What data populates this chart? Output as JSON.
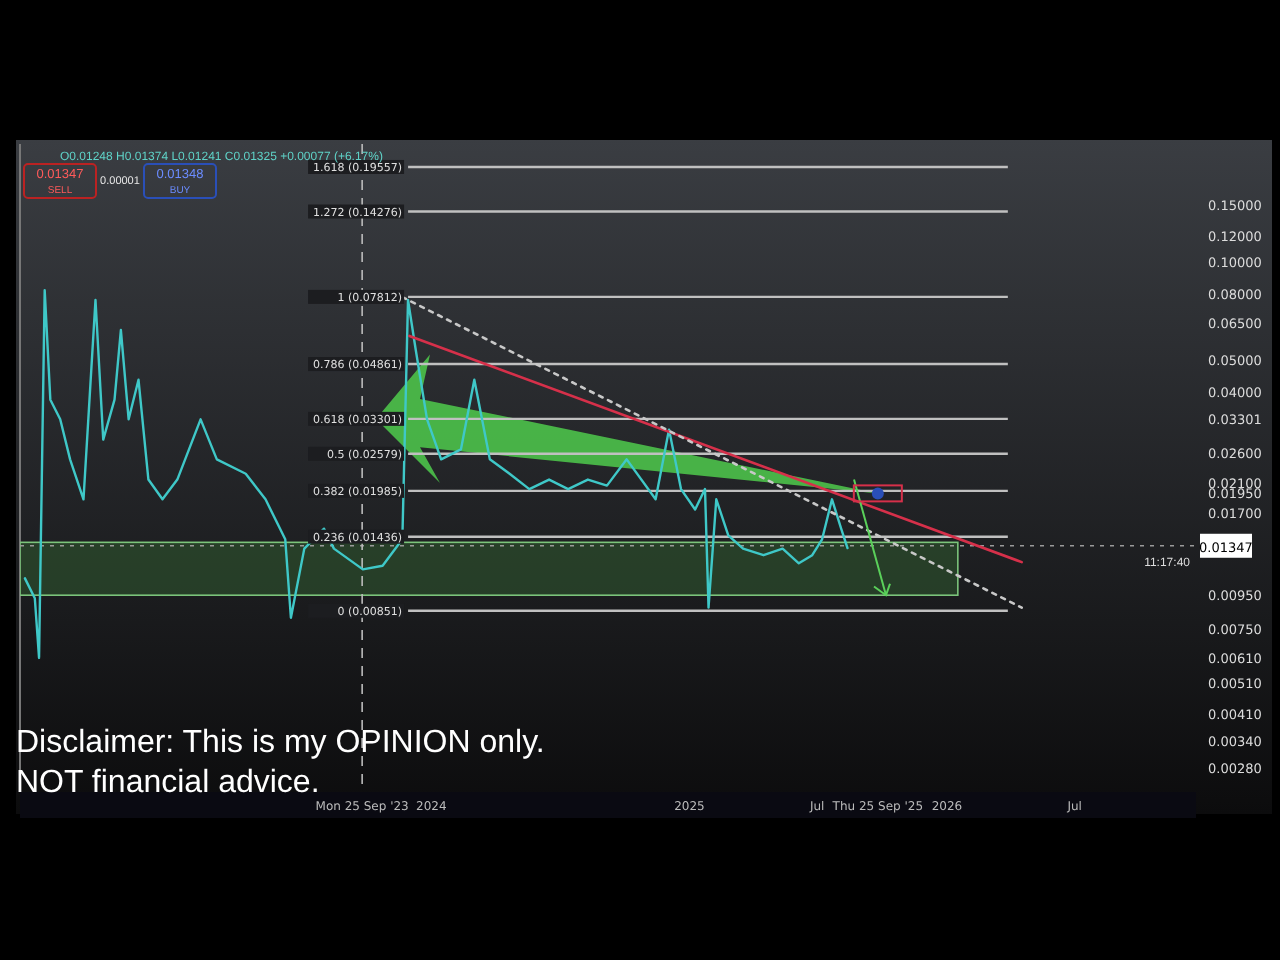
{
  "chart_data": {
    "type": "line",
    "log": "y",
    "xlim": [
      "2022-05-28",
      "2026-12-20"
    ],
    "ylim": [
      0.0024,
      0.23
    ],
    "xticks": [
      {
        "value": "2023-09-25",
        "label": "Mon 25 Sep '23"
      },
      {
        "value": "2024-01-01",
        "label": "2024"
      },
      {
        "value": "2025-01-01",
        "label": "2025"
      },
      {
        "value": "2025-07-01",
        "label": "Jul"
      },
      {
        "value": "2025-09-25",
        "label": "Thu 25 Sep '25"
      },
      {
        "value": "2026-01-01",
        "label": "2026"
      },
      {
        "value": "2026-07-01",
        "label": "Jul"
      }
    ],
    "yticks": [
      {
        "value": 0.15,
        "label": "0.15000"
      },
      {
        "value": 0.12,
        "label": "0.12000"
      },
      {
        "value": 0.1,
        "label": "0.10000"
      },
      {
        "value": 0.08,
        "label": "0.08000"
      },
      {
        "value": 0.065,
        "label": "0.06500"
      },
      {
        "value": 0.05,
        "label": "0.05000"
      },
      {
        "value": 0.04,
        "label": "0.04000"
      },
      {
        "value": 0.03301,
        "label": "0.03301"
      },
      {
        "value": 0.026,
        "label": "0.02600"
      },
      {
        "value": 0.021,
        "label": "0.02100"
      },
      {
        "value": 0.0195,
        "label": "0.01950"
      },
      {
        "value": 0.017,
        "label": "0.01700"
      },
      {
        "value": 0.0095,
        "label": "0.00950"
      },
      {
        "value": 0.0075,
        "label": "0.00750"
      },
      {
        "value": 0.0061,
        "label": "0.00610"
      },
      {
        "value": 0.0051,
        "label": "0.00510"
      },
      {
        "value": 0.0041,
        "label": "0.00410"
      },
      {
        "value": 0.0034,
        "label": "0.00340"
      },
      {
        "value": 0.0028,
        "label": "0.00280"
      }
    ],
    "series": [
      {
        "color": "#3fc8c8",
        "x": [
          "2022-06-04",
          "2022-06-18",
          "2022-06-24",
          "2022-07-02",
          "2022-07-10",
          "2022-07-24",
          "2022-08-07",
          "2022-08-26",
          "2022-09-12",
          "2022-09-23",
          "2022-10-09",
          "2022-10-18",
          "2022-10-29",
          "2022-11-12",
          "2022-11-26",
          "2022-12-16",
          "2023-01-06",
          "2023-02-08",
          "2023-03-03",
          "2023-04-13",
          "2023-05-11",
          "2023-06-08",
          "2023-06-16",
          "2023-07-05",
          "2023-08-02",
          "2023-08-16",
          "2023-09-26",
          "2023-10-24",
          "2023-11-21",
          "2023-11-29",
          "2023-12-10",
          "2023-12-26",
          "2024-01-15",
          "2024-02-12",
          "2024-03-02",
          "2024-03-24",
          "2024-04-21",
          "2024-05-19",
          "2024-06-16",
          "2024-07-13",
          "2024-08-10",
          "2024-09-06",
          "2024-10-04",
          "2024-11-14",
          "2024-12-03",
          "2024-12-20",
          "2025-01-09",
          "2025-01-23",
          "2025-01-28",
          "2025-02-08",
          "2025-02-25",
          "2025-03-18",
          "2025-04-16",
          "2025-05-13",
          "2025-06-05",
          "2025-06-24",
          "2025-07-08",
          "2025-07-22",
          "2025-08-04",
          "2025-08-13"
        ],
        "values": [
          0.0107,
          0.0093,
          0.0061,
          0.0819,
          0.0378,
          0.0329,
          0.0248,
          0.0187,
          0.0764,
          0.0285,
          0.0378,
          0.0618,
          0.0329,
          0.0435,
          0.0215,
          0.0187,
          0.0215,
          0.0329,
          0.0248,
          0.0224,
          0.0187,
          0.0141,
          0.0081,
          0.0132,
          0.0152,
          0.0132,
          0.0114,
          0.0117,
          0.0141,
          0.0764,
          0.0537,
          0.0329,
          0.0248,
          0.0266,
          0.0435,
          0.0248,
          0.0224,
          0.0201,
          0.0215,
          0.0201,
          0.0215,
          0.0206,
          0.0248,
          0.0187,
          0.0306,
          0.0201,
          0.0174,
          0.0201,
          0.0087,
          0.0187,
          0.0145,
          0.0132,
          0.0126,
          0.0132,
          0.0119,
          0.0126,
          0.0141,
          0.0187,
          0.0152,
          0.01325
        ]
      },
      {
        "color": "#d6304a",
        "x": [
          "2023-12-01",
          "2026-04-17"
        ],
        "values": [
          0.0593,
          0.012
        ]
      },
      {
        "color": "#c8c8c8",
        "line_style": "dotted",
        "x": [
          "2023-11-21",
          "2026-04-17"
        ],
        "values": [
          0.078,
          0.0087
        ]
      }
    ],
    "ref_lines": [
      {
        "axis": "y",
        "value": 0.19557,
        "label": "1.618 (0.19557)",
        "color": "#c0c0c0"
      },
      {
        "axis": "y",
        "value": 0.14276,
        "label": "1.272 (0.14276)",
        "color": "#c0c0c0"
      },
      {
        "axis": "y",
        "value": 0.07812,
        "label": "1 (0.07812)",
        "color": "#c0c0c0"
      },
      {
        "axis": "y",
        "value": 0.04861,
        "label": "0.786 (0.04861)",
        "color": "#c0c0c0"
      },
      {
        "axis": "y",
        "value": 0.03301,
        "label": "0.618 (0.03301)",
        "color": "#c0c0c0"
      },
      {
        "axis": "y",
        "value": 0.02579,
        "label": "0.5 (0.02579)",
        "color": "#c0c0c0"
      },
      {
        "axis": "y",
        "value": 0.01985,
        "label": "0.382 (0.01985)",
        "color": "#c0c0c0"
      },
      {
        "axis": "y",
        "value": 0.01436,
        "label": "0.236 (0.01436)",
        "color": "#c0c0c0"
      },
      {
        "axis": "y",
        "value": 0.00851,
        "label": "0 (0.00851)",
        "color": "#c0c0c0"
      },
      {
        "axis": "y",
        "value": 0.01347,
        "label": "0.01347",
        "color": "#9a9a9a",
        "line_style": "dotted"
      },
      {
        "axis": "x",
        "value": "2023-09-25",
        "color": "#bbbbbb",
        "line_style": "dashed"
      }
    ],
    "bands": [
      {
        "axis": "y",
        "from": 0.0095,
        "to": 0.0138,
        "color": "#2f5a2f"
      }
    ],
    "annotations": [
      "O0.01248 H0.01374 L0.01241 C0.01325 +0.00077 (+6.17%)",
      "0.01347",
      "SELL",
      "0.00001",
      "0.01348",
      "BUY",
      "11:17:40",
      "Disclaimer: This is my OPINION only.",
      "NOT financial advice."
    ]
  }
}
